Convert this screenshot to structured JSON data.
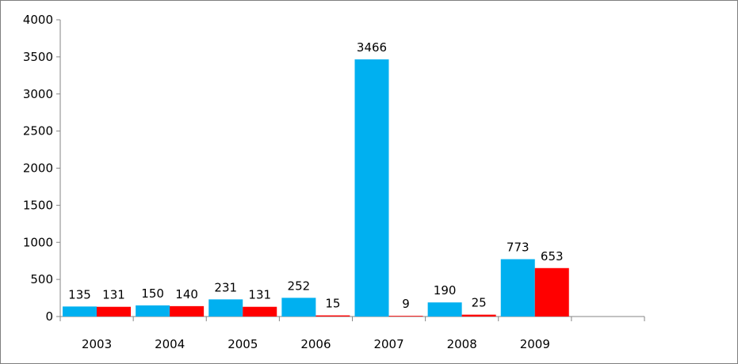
{
  "chart_data": {
    "type": "bar",
    "categories": [
      "2003",
      "2004",
      "2005",
      "2006",
      "2007",
      "2008",
      "2009",
      ""
    ],
    "series": [
      {
        "values": [
          135,
          150,
          231,
          252,
          3466,
          190,
          773,
          null
        ],
        "color": "#00b0f0"
      },
      {
        "values": [
          131,
          140,
          131,
          15,
          9,
          25,
          653,
          null
        ],
        "color": "#ff0000"
      }
    ],
    "ylim": [
      0,
      4000
    ],
    "yticks": [
      0,
      500,
      1000,
      1500,
      2000,
      2500,
      3000,
      3500,
      4000
    ],
    "title": "",
    "xlabel": "",
    "ylabel": "",
    "grid": false,
    "legend": "none",
    "data_labels": true
  }
}
